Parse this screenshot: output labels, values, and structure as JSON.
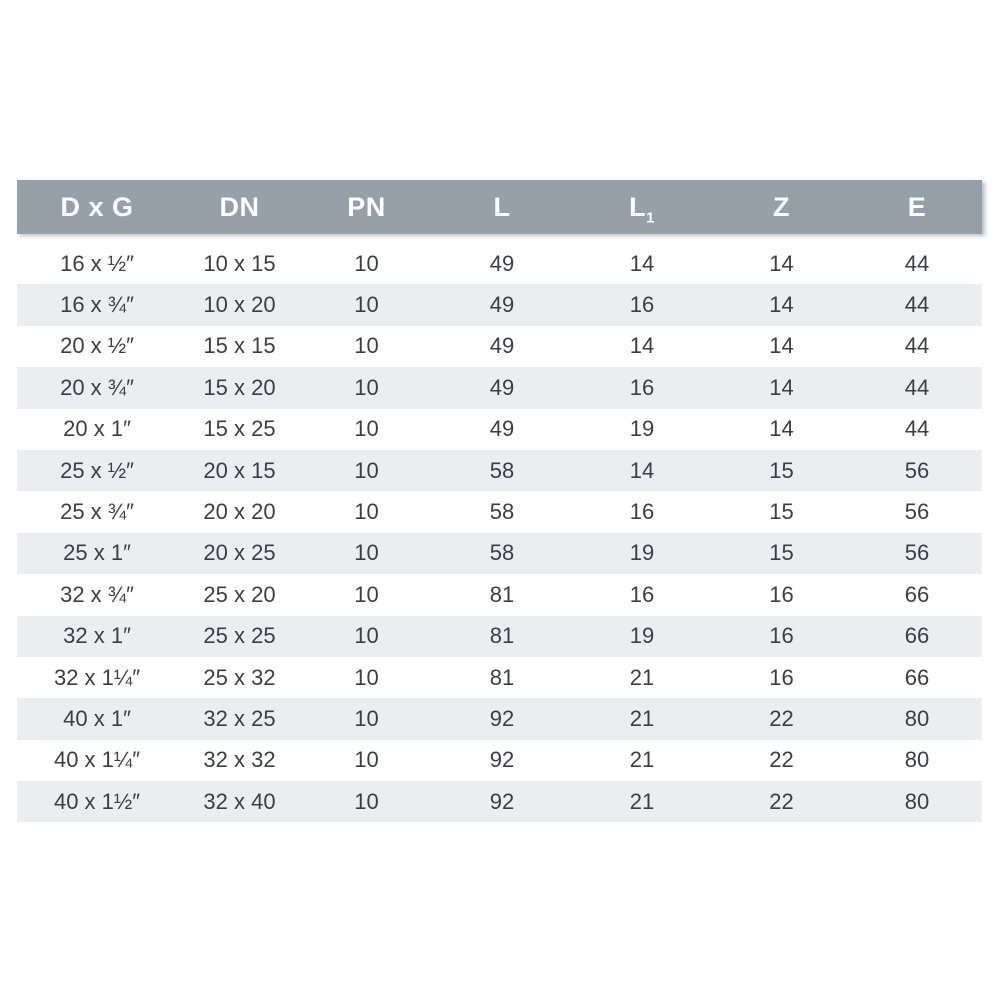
{
  "chart_data": {
    "type": "table",
    "columns": [
      {
        "key": "dxg",
        "label": "D x G",
        "sub": ""
      },
      {
        "key": "dn",
        "label": "DN",
        "sub": ""
      },
      {
        "key": "pn",
        "label": "PN",
        "sub": ""
      },
      {
        "key": "l",
        "label": "L",
        "sub": ""
      },
      {
        "key": "l1",
        "label": "L",
        "sub": "1"
      },
      {
        "key": "z",
        "label": "Z",
        "sub": ""
      },
      {
        "key": "e",
        "label": "E",
        "sub": ""
      }
    ],
    "rows": [
      [
        "16 x ½″",
        "10 x 15",
        "10",
        "49",
        "14",
        "14",
        "44"
      ],
      [
        "16 x ¾″",
        "10 x 20",
        "10",
        "49",
        "16",
        "14",
        "44"
      ],
      [
        "20 x ½″",
        "15 x 15",
        "10",
        "49",
        "14",
        "14",
        "44"
      ],
      [
        "20 x ¾″",
        "15 x 20",
        "10",
        "49",
        "16",
        "14",
        "44"
      ],
      [
        "20 x 1″",
        "15 x 25",
        "10",
        "49",
        "19",
        "14",
        "44"
      ],
      [
        "25 x ½″",
        "20 x 15",
        "10",
        "58",
        "14",
        "15",
        "56"
      ],
      [
        "25 x ¾″",
        "20 x 20",
        "10",
        "58",
        "16",
        "15",
        "56"
      ],
      [
        "25 x 1″",
        "20 x 25",
        "10",
        "58",
        "19",
        "15",
        "56"
      ],
      [
        "32 x ¾″",
        "25 x 20",
        "10",
        "81",
        "16",
        "16",
        "66"
      ],
      [
        "32 x 1″",
        "25 x 25",
        "10",
        "81",
        "19",
        "16",
        "66"
      ],
      [
        "32 x 1¼″",
        "25 x 32",
        "10",
        "81",
        "21",
        "16",
        "66"
      ],
      [
        "40 x 1″",
        "32 x 25",
        "10",
        "92",
        "21",
        "22",
        "80"
      ],
      [
        "40 x 1¼″",
        "32 x 32",
        "10",
        "92",
        "21",
        "22",
        "80"
      ],
      [
        "40 x 1½″",
        "32 x 40",
        "10",
        "92",
        "21",
        "22",
        "80"
      ]
    ],
    "layout": {
      "striped_rows": true,
      "text_align": "center",
      "header_position": "top"
    }
  },
  "colors": {
    "page_bg": "#ffffff",
    "header_bg": "#96a0a9",
    "header_text": "#fdfefe",
    "row_bg": "#ffffff",
    "row_alt_bg": "#ebeef1",
    "cell_text": "#3a3f44"
  }
}
